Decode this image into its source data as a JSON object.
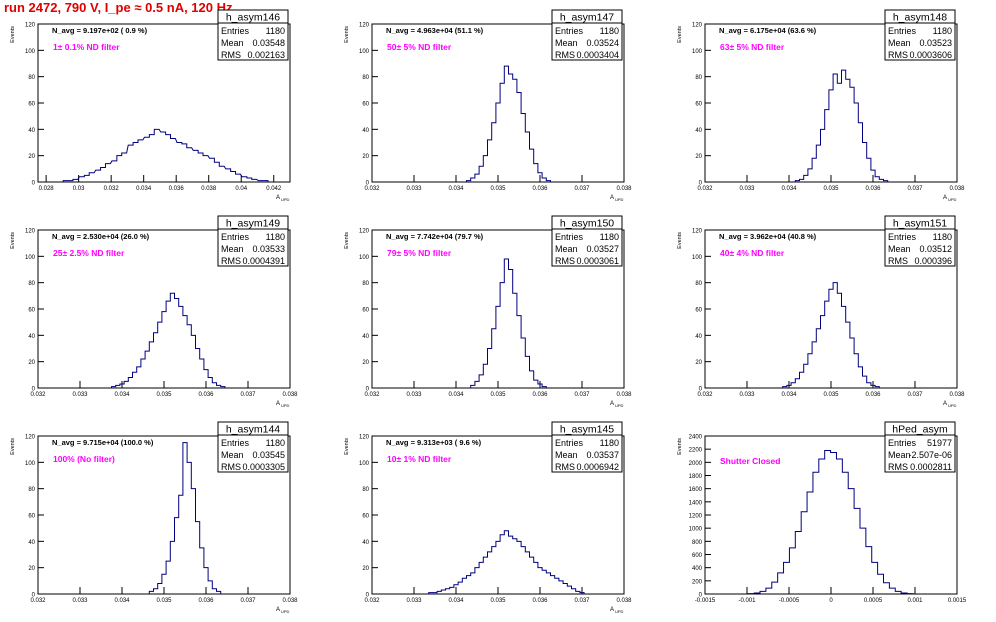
{
  "page": {
    "run_title": "run 2472,   790 V, I_pe ≈ 0.5 nA, 120 Hz"
  },
  "chart_data": [
    {
      "type": "bar",
      "name": "h_asym146",
      "ylabel": "Events",
      "xlabel": "A",
      "xlabel_sub": "UPD",
      "ylim": [
        0,
        120
      ],
      "yticks": [
        0,
        20,
        40,
        60,
        80,
        100,
        120
      ],
      "xlim": [
        0.0275,
        0.043
      ],
      "xticks": [
        0.028,
        0.03,
        0.032,
        0.034,
        0.036,
        0.038,
        0.04,
        0.042
      ],
      "xtick_labels": [
        "0.028",
        "0.03",
        "0.032",
        "0.034",
        "0.036",
        "0.038",
        "0.04",
        "0.042"
      ],
      "n_avg": "N_avg = 9.197e+02 ( 0.9 %)",
      "filter": "1± 0.1% ND filter",
      "stats": {
        "entries": "1180",
        "mean": "0.03548",
        "rms": "0.002163"
      },
      "x": [
        0.0292,
        0.0295,
        0.0298,
        0.0302,
        0.0305,
        0.0308,
        0.0312,
        0.0315,
        0.0318,
        0.0322,
        0.0325,
        0.0328,
        0.0332,
        0.0335,
        0.0338,
        0.0342,
        0.0345,
        0.0348,
        0.0352,
        0.0355,
        0.0358,
        0.0362,
        0.0365,
        0.0368,
        0.0372,
        0.0375,
        0.0378,
        0.0382,
        0.0385,
        0.0388,
        0.0392,
        0.0395,
        0.0398,
        0.0402,
        0.0405,
        0.0408,
        0.0412,
        0.0415
      ],
      "values": [
        1,
        1,
        2,
        4,
        5,
        7,
        9,
        11,
        14,
        16,
        20,
        22,
        28,
        30,
        32,
        34,
        36,
        40,
        38,
        36,
        33,
        30,
        29,
        26,
        24,
        22,
        20,
        18,
        15,
        12,
        10,
        8,
        6,
        4,
        3,
        2,
        1,
        1
      ]
    },
    {
      "type": "bar",
      "name": "h_asym147",
      "ylabel": "Events",
      "xlabel": "A",
      "xlabel_sub": "UPD",
      "ylim": [
        0,
        120
      ],
      "yticks": [
        0,
        20,
        40,
        60,
        80,
        100,
        120
      ],
      "xlim": [
        0.032,
        0.038
      ],
      "xticks": [
        0.032,
        0.033,
        0.034,
        0.035,
        0.036,
        0.037,
        0.038
      ],
      "xtick_labels": [
        "0.032",
        "0.033",
        "0.034",
        "0.035",
        "0.036",
        "0.037",
        "0.038"
      ],
      "n_avg": "N_avg = 4.963e+04 (51.1 %)",
      "filter": "50± 5% ND filter",
      "stats": {
        "entries": "1180",
        "mean": "0.03524",
        "rms": "0.0003404"
      },
      "x": [
        0.0343,
        0.0344,
        0.0345,
        0.0346,
        0.0347,
        0.0348,
        0.0349,
        0.035,
        0.0351,
        0.0352,
        0.0353,
        0.0354,
        0.0355,
        0.0356,
        0.0357,
        0.0358,
        0.0359,
        0.036,
        0.0361,
        0.0362
      ],
      "values": [
        1,
        3,
        6,
        12,
        20,
        32,
        45,
        60,
        75,
        88,
        82,
        78,
        68,
        52,
        38,
        25,
        14,
        7,
        3,
        1
      ]
    },
    {
      "type": "bar",
      "name": "h_asym148",
      "ylabel": "Events",
      "xlabel": "A",
      "xlabel_sub": "UPD",
      "ylim": [
        0,
        120
      ],
      "yticks": [
        0,
        20,
        40,
        60,
        80,
        100,
        120
      ],
      "xlim": [
        0.032,
        0.038
      ],
      "xticks": [
        0.032,
        0.033,
        0.034,
        0.035,
        0.036,
        0.037,
        0.038
      ],
      "xtick_labels": [
        "0.032",
        "0.033",
        "0.034",
        "0.035",
        "0.036",
        "0.037",
        "0.038"
      ],
      "n_avg": "N_avg = 6.175e+04 (63.6 %)",
      "filter": "63± 5% ND filter",
      "stats": {
        "entries": "1180",
        "mean": "0.03523",
        "rms": "0.0003606"
      },
      "x": [
        0.0342,
        0.0343,
        0.0344,
        0.0345,
        0.0346,
        0.0347,
        0.0348,
        0.0349,
        0.035,
        0.0351,
        0.0352,
        0.0353,
        0.0354,
        0.0355,
        0.0356,
        0.0357,
        0.0358,
        0.0359,
        0.036,
        0.0361,
        0.0362,
        0.0363
      ],
      "values": [
        1,
        2,
        5,
        10,
        18,
        28,
        40,
        55,
        70,
        82,
        75,
        85,
        78,
        72,
        60,
        45,
        30,
        18,
        9,
        4,
        2,
        1
      ]
    },
    {
      "type": "bar",
      "name": "h_asym149",
      "ylabel": "Events",
      "xlabel": "A",
      "xlabel_sub": "UPD",
      "ylim": [
        0,
        120
      ],
      "yticks": [
        0,
        20,
        40,
        60,
        80,
        100,
        120
      ],
      "xlim": [
        0.032,
        0.038
      ],
      "xticks": [
        0.032,
        0.033,
        0.034,
        0.035,
        0.036,
        0.037,
        0.038
      ],
      "xtick_labels": [
        "0.032",
        "0.033",
        "0.034",
        "0.035",
        "0.036",
        "0.037",
        "0.038"
      ],
      "n_avg": "N_avg = 2.530e+04 (26.0 %)",
      "filter": "25± 2.5% ND filter",
      "stats": {
        "entries": "1180",
        "mean": "0.03533",
        "rms": "0.0004391"
      },
      "x": [
        0.0338,
        0.0339,
        0.034,
        0.0341,
        0.0342,
        0.0343,
        0.0344,
        0.0345,
        0.0346,
        0.0347,
        0.0348,
        0.0349,
        0.035,
        0.0351,
        0.0352,
        0.0353,
        0.0354,
        0.0355,
        0.0356,
        0.0357,
        0.0358,
        0.0359,
        0.036,
        0.0361,
        0.0362,
        0.0363,
        0.0364
      ],
      "values": [
        1,
        2,
        3,
        5,
        8,
        12,
        16,
        22,
        28,
        35,
        42,
        50,
        58,
        66,
        72,
        68,
        62,
        55,
        48,
        40,
        30,
        22,
        14,
        8,
        4,
        2,
        1
      ]
    },
    {
      "type": "bar",
      "name": "h_asym150",
      "ylabel": "Events",
      "xlabel": "A",
      "xlabel_sub": "UPD",
      "ylim": [
        0,
        120
      ],
      "yticks": [
        0,
        20,
        40,
        60,
        80,
        100,
        120
      ],
      "xlim": [
        0.032,
        0.038
      ],
      "xticks": [
        0.032,
        0.033,
        0.034,
        0.035,
        0.036,
        0.037,
        0.038
      ],
      "xtick_labels": [
        "0.032",
        "0.033",
        "0.034",
        "0.035",
        "0.036",
        "0.037",
        "0.038"
      ],
      "n_avg": "N_avg = 7.742e+04 (79.7 %)",
      "filter": "79± 5% ND filter",
      "stats": {
        "entries": "1180",
        "mean": "0.03527",
        "rms": "0.0003061"
      },
      "x": [
        0.0344,
        0.0345,
        0.0346,
        0.0347,
        0.0348,
        0.0349,
        0.035,
        0.0351,
        0.0352,
        0.0353,
        0.0354,
        0.0355,
        0.0356,
        0.0357,
        0.0358,
        0.0359,
        0.036,
        0.0361
      ],
      "values": [
        2,
        5,
        10,
        18,
        30,
        45,
        62,
        80,
        98,
        90,
        72,
        55,
        38,
        24,
        13,
        6,
        3,
        1
      ]
    },
    {
      "type": "bar",
      "name": "h_asym151",
      "ylabel": "Events",
      "xlabel": "A",
      "xlabel_sub": "UPD",
      "ylim": [
        0,
        120
      ],
      "yticks": [
        0,
        20,
        40,
        60,
        80,
        100,
        120
      ],
      "xlim": [
        0.032,
        0.038
      ],
      "xticks": [
        0.032,
        0.033,
        0.034,
        0.035,
        0.036,
        0.037,
        0.038
      ],
      "xtick_labels": [
        "0.032",
        "0.033",
        "0.034",
        "0.035",
        "0.036",
        "0.037",
        "0.038"
      ],
      "n_avg": "N_avg = 3.962e+04 (40.8 %)",
      "filter": "40± 4% ND filter",
      "stats": {
        "entries": "1180",
        "mean": "0.03512",
        "rms": "0.000396"
      },
      "x": [
        0.0339,
        0.034,
        0.0341,
        0.0342,
        0.0343,
        0.0344,
        0.0345,
        0.0346,
        0.0347,
        0.0348,
        0.0349,
        0.035,
        0.0351,
        0.0352,
        0.0353,
        0.0354,
        0.0355,
        0.0356,
        0.0357,
        0.0358,
        0.0359,
        0.036,
        0.0361
      ],
      "values": [
        1,
        2,
        4,
        7,
        12,
        18,
        26,
        35,
        45,
        55,
        66,
        75,
        80,
        72,
        62,
        50,
        38,
        26,
        16,
        9,
        4,
        2,
        1
      ]
    },
    {
      "type": "bar",
      "name": "h_asym144",
      "ylabel": "Events",
      "xlabel": "A",
      "xlabel_sub": "UPD",
      "ylim": [
        0,
        120
      ],
      "yticks": [
        0,
        20,
        40,
        60,
        80,
        100,
        120
      ],
      "xlim": [
        0.032,
        0.038
      ],
      "xticks": [
        0.032,
        0.033,
        0.034,
        0.035,
        0.036,
        0.037,
        0.038
      ],
      "xtick_labels": [
        "0.032",
        "0.033",
        "0.034",
        "0.035",
        "0.036",
        "0.037",
        "0.038"
      ],
      "n_avg": "N_avg = 9.715e+04 (100.0 %)",
      "filter": "100% (No filter)",
      "stats": {
        "entries": "1180",
        "mean": "0.03545",
        "rms": "0.0003305"
      },
      "x": [
        0.0347,
        0.0348,
        0.0349,
        0.035,
        0.0351,
        0.0352,
        0.0353,
        0.0354,
        0.0355,
        0.0356,
        0.0357,
        0.0358,
        0.0359,
        0.036,
        0.0361,
        0.0362,
        0.0363
      ],
      "values": [
        2,
        4,
        8,
        15,
        25,
        40,
        58,
        75,
        115,
        100,
        80,
        55,
        35,
        20,
        10,
        4,
        2
      ]
    },
    {
      "type": "bar",
      "name": "h_asym145",
      "ylabel": "Events",
      "xlabel": "A",
      "xlabel_sub": "UPD",
      "ylim": [
        0,
        120
      ],
      "yticks": [
        0,
        20,
        40,
        60,
        80,
        100,
        120
      ],
      "xlim": [
        0.032,
        0.038
      ],
      "xticks": [
        0.032,
        0.033,
        0.034,
        0.035,
        0.036,
        0.037,
        0.038
      ],
      "xtick_labels": [
        "0.032",
        "0.033",
        "0.034",
        "0.035",
        "0.036",
        "0.037",
        "0.038"
      ],
      "n_avg": "N_avg = 9.313e+03 ( 9.6 %)",
      "filter": "10± 1% ND filter",
      "stats": {
        "entries": "1180",
        "mean": "0.03537",
        "rms": "0.0006942"
      },
      "x": [
        0.0334,
        0.0335,
        0.0336,
        0.0337,
        0.0338,
        0.0339,
        0.034,
        0.0341,
        0.0342,
        0.0343,
        0.0344,
        0.0345,
        0.0346,
        0.0347,
        0.0348,
        0.0349,
        0.035,
        0.0351,
        0.0352,
        0.0353,
        0.0354,
        0.0355,
        0.0356,
        0.0357,
        0.0358,
        0.0359,
        0.036,
        0.0361,
        0.0362,
        0.0363,
        0.0364,
        0.0365,
        0.0366,
        0.0367,
        0.0368,
        0.0369,
        0.037
      ],
      "values": [
        1,
        1,
        2,
        3,
        4,
        5,
        7,
        9,
        12,
        14,
        16,
        20,
        24,
        28,
        32,
        36,
        40,
        45,
        48,
        44,
        42,
        40,
        36,
        32,
        28,
        24,
        20,
        18,
        16,
        14,
        12,
        10,
        8,
        6,
        4,
        2,
        1
      ]
    },
    {
      "type": "bar",
      "name": "hPed_asym",
      "ylabel": "Events",
      "xlabel": "",
      "xlabel_sub": "",
      "ylim": [
        0,
        2400
      ],
      "yticks": [
        0,
        200,
        400,
        600,
        800,
        1000,
        1200,
        1400,
        1600,
        1800,
        2000,
        2200,
        2400
      ],
      "xlim": [
        -0.0015,
        0.0015
      ],
      "xticks": [
        -0.0015,
        -0.001,
        -0.0005,
        0,
        0.0005,
        0.001,
        0.0015
      ],
      "xtick_labels": [
        "-0.0015",
        "-0.001",
        "-0.0005",
        "0",
        "0.0005",
        "0.001",
        "0.0015"
      ],
      "n_avg": "",
      "filter": "Shutter Closed",
      "stats": {
        "entries": "51977",
        "mean": "-2.507e-06",
        "rms": "0.0002811"
      },
      "x": [
        -0.00095,
        -0.00088,
        -0.00081,
        -0.00074,
        -0.00067,
        -0.0006,
        -0.00053,
        -0.00046,
        -0.00039,
        -0.00032,
        -0.00025,
        -0.00018,
        -0.00011,
        -4e-05,
        3e-05,
        0.0001,
        0.00017,
        0.00024,
        0.00031,
        0.00038,
        0.00045,
        0.00052,
        0.00059,
        0.00066,
        0.00073,
        0.0008,
        0.00087,
        0.00094
      ],
      "values": [
        5,
        15,
        40,
        90,
        180,
        320,
        480,
        700,
        950,
        1250,
        1550,
        1850,
        2050,
        2180,
        2150,
        2050,
        1850,
        1600,
        1300,
        1000,
        720,
        480,
        300,
        170,
        90,
        40,
        15,
        5
      ]
    }
  ]
}
